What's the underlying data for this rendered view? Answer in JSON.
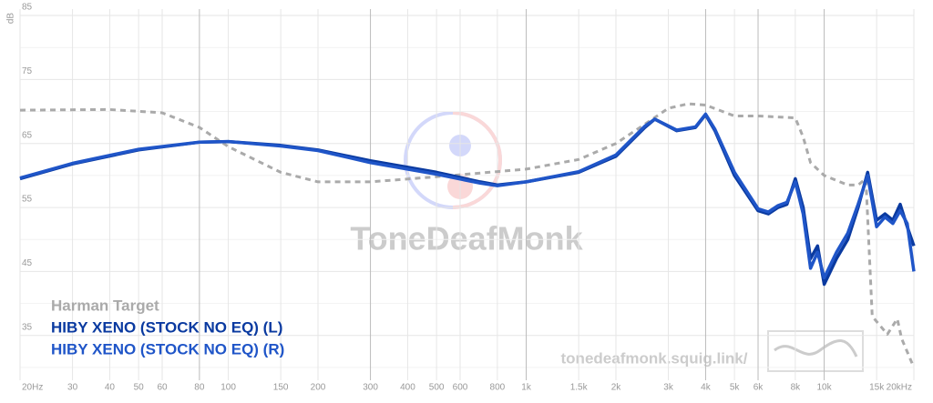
{
  "chart_data": {
    "type": "line",
    "log_x": true,
    "y_label": "dB",
    "watermark": "ToneDeafMonk",
    "site": "tonedeafmonk.squig.link/",
    "xlim": [
      20,
      20000
    ],
    "ylim": [
      28,
      86
    ],
    "xticks": [
      {
        "value": 20,
        "label": "20Hz"
      },
      30,
      40,
      50,
      60,
      80,
      100,
      150,
      200,
      300,
      400,
      500,
      600,
      800,
      {
        "value": 1000,
        "label": "1k"
      },
      {
        "value": 1500,
        "label": "1.5k"
      },
      {
        "value": 2000,
        "label": "2k"
      },
      {
        "value": 3000,
        "label": "3k"
      },
      {
        "value": 4000,
        "label": "4k"
      },
      {
        "value": 5000,
        "label": "5k"
      },
      {
        "value": 6000,
        "label": "6k"
      },
      {
        "value": 8000,
        "label": "8k"
      },
      {
        "value": 10000,
        "label": "10k"
      },
      {
        "value": 15000,
        "label": "15k"
      },
      {
        "value": 20000,
        "label": "20kHz"
      }
    ],
    "xticks_emphasized": [
      80,
      300,
      1000,
      4000,
      6000,
      10000
    ],
    "yticks": [
      35,
      45,
      55,
      65,
      75,
      85
    ],
    "y_minor_grid": [
      30,
      40,
      50,
      60,
      70,
      80
    ],
    "grid": true,
    "series": [
      {
        "name": "Harman Target",
        "color": "#aaaaaa",
        "dashed": true,
        "x": [
          20,
          40,
          60,
          80,
          100,
          150,
          200,
          300,
          500,
          1000,
          1500,
          2000,
          2500,
          3000,
          3500,
          4000,
          5000,
          6000,
          8000,
          8500,
          9000,
          10000,
          12000,
          13000,
          13800,
          14500,
          16300,
          17600,
          18200,
          20000
        ],
        "values": [
          70.2,
          70.3,
          69.8,
          67.5,
          64.5,
          60.5,
          59,
          59,
          59.8,
          61,
          62.5,
          65,
          68,
          70.5,
          71.2,
          71,
          69.3,
          69.3,
          69,
          66,
          62,
          60,
          58.5,
          58.5,
          59.5,
          38,
          35.2,
          37.6,
          34.5,
          30
        ]
      },
      {
        "name": "HIBY XENO (STOCK NO EQ) (L)",
        "color": "#0a3aa0",
        "x": [
          20,
          30,
          50,
          80,
          100,
          150,
          200,
          300,
          500,
          700,
          800,
          1000,
          1500,
          2000,
          2500,
          2700,
          3200,
          3700,
          4000,
          4300,
          5000,
          6000,
          6500,
          7000,
          7500,
          8000,
          8500,
          9000,
          9500,
          10000,
          11000,
          12000,
          13000,
          14000,
          15000,
          16000,
          17000,
          18000,
          19000,
          20000
        ],
        "values": [
          59.5,
          61.8,
          64,
          65.2,
          65.3,
          64.7,
          64,
          62.3,
          60.5,
          59,
          58.5,
          59,
          60.5,
          63,
          67.5,
          68.8,
          67,
          67.5,
          69.5,
          67,
          60,
          54.5,
          54,
          55,
          55.5,
          59.5,
          55,
          47,
          49,
          43,
          47,
          50,
          55,
          60.5,
          53,
          54,
          53,
          55.5,
          52,
          49
        ]
      },
      {
        "name": "HIBY XENO (STOCK NO EQ) (R)",
        "color": "#1f55c8",
        "x": [
          20,
          30,
          50,
          80,
          100,
          150,
          200,
          300,
          500,
          700,
          800,
          1000,
          1500,
          2000,
          2500,
          2700,
          3200,
          3700,
          4000,
          4300,
          5000,
          6000,
          6500,
          7000,
          7500,
          8000,
          8500,
          9000,
          9500,
          10000,
          11000,
          12000,
          13000,
          14000,
          15000,
          16000,
          17000,
          18000,
          19000,
          20000
        ],
        "values": [
          59.6,
          61.9,
          64.1,
          65.2,
          65.3,
          64.6,
          63.9,
          62,
          60.2,
          58.8,
          58.4,
          59,
          60.6,
          63.2,
          67.7,
          68.8,
          67.1,
          67.6,
          69.6,
          67.2,
          60.5,
          54.8,
          54.3,
          55.3,
          55.8,
          59,
          54,
          45.5,
          48,
          44,
          48,
          51,
          55.5,
          60,
          52,
          53.5,
          52.5,
          54.5,
          52.5,
          45
        ]
      }
    ]
  }
}
